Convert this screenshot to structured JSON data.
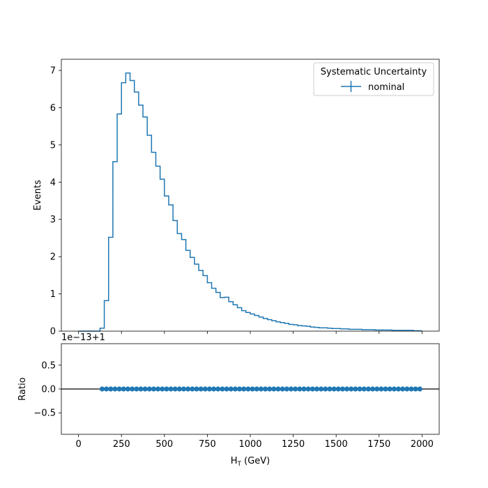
{
  "chart_data": [
    {
      "type": "line",
      "panel": "main",
      "ylabel": "Events",
      "ylim": [
        0,
        7.3
      ],
      "xlim": [
        -100,
        2100
      ],
      "yticks": [
        0,
        1,
        2,
        3,
        4,
        5,
        6,
        7
      ],
      "legend": {
        "title": "Systematic Uncertainty",
        "location": "upper right",
        "entries": [
          "nominal"
        ]
      },
      "series": [
        {
          "name": "nominal",
          "color": "#1f77b4",
          "bin_edges": [
            0,
            25,
            50,
            75,
            100,
            125,
            150,
            175,
            200,
            225,
            250,
            275,
            300,
            325,
            350,
            375,
            400,
            425,
            450,
            475,
            500,
            525,
            550,
            575,
            600,
            625,
            650,
            675,
            700,
            725,
            750,
            775,
            800,
            825,
            850,
            875,
            900,
            925,
            950,
            975,
            1000,
            1025,
            1050,
            1075,
            1100,
            1125,
            1150,
            1175,
            1200,
            1225,
            1250,
            1275,
            1300,
            1325,
            1350,
            1375,
            1400,
            1425,
            1450,
            1475,
            1500,
            1525,
            1550,
            1575,
            1600,
            1625,
            1650,
            1675,
            1700,
            1725,
            1750,
            1775,
            1800,
            1825,
            1850,
            1875,
            1900,
            1925,
            1950,
            1975,
            2000
          ],
          "values": [
            0,
            0,
            0,
            0,
            0,
            0.08,
            0.82,
            2.52,
            4.55,
            5.83,
            6.67,
            6.93,
            6.73,
            6.42,
            6.07,
            5.75,
            5.26,
            4.8,
            4.43,
            4.08,
            3.63,
            3.39,
            2.97,
            2.62,
            2.46,
            2.17,
            1.98,
            1.8,
            1.63,
            1.49,
            1.3,
            1.15,
            1.04,
            0.9,
            0.91,
            0.79,
            0.71,
            0.63,
            0.55,
            0.5,
            0.46,
            0.42,
            0.38,
            0.34,
            0.31,
            0.28,
            0.25,
            0.23,
            0.21,
            0.18,
            0.17,
            0.15,
            0.14,
            0.13,
            0.11,
            0.1,
            0.09,
            0.09,
            0.08,
            0.07,
            0.07,
            0.06,
            0.06,
            0.05,
            0.05,
            0.05,
            0.04,
            0.04,
            0.04,
            0.03,
            0.03,
            0.03,
            0.03,
            0.02,
            0.02,
            0.02,
            0.02,
            0.02,
            0.01,
            0.01
          ]
        }
      ]
    },
    {
      "type": "scatter",
      "panel": "ratio",
      "ylabel": "Ratio",
      "xlabel": "H_T (GeV)",
      "offset_label": "1e−13+1",
      "ylim": [
        -0.95,
        0.95
      ],
      "xlim": [
        -100,
        2100
      ],
      "yticks": [
        -0.5,
        0.0,
        0.5
      ],
      "xticks": [
        0,
        250,
        500,
        750,
        1000,
        1250,
        1500,
        1750,
        2000
      ],
      "reference_line": 0.0,
      "series": [
        {
          "name": "nominal",
          "color": "#1f77b4",
          "x_first": 137.5,
          "x_last": 1987.5,
          "x_step": 25,
          "y": 0.0
        }
      ]
    }
  ],
  "text": {
    "ylabel_main": "Events",
    "ylabel_ratio": "Ratio",
    "xlabel_main": "H",
    "xlabel_sub": "T",
    "xlabel_unit": " (GeV)",
    "offset": "1e−13+1",
    "legend_title": "Systematic Uncertainty",
    "legend_entry": "nominal",
    "yticks_main": [
      "0",
      "1",
      "2",
      "3",
      "4",
      "5",
      "6",
      "7"
    ],
    "yticks_ratio": [
      "−0.5",
      "0.0",
      "0.5"
    ],
    "xticks": [
      "0",
      "250",
      "500",
      "750",
      "1000",
      "1250",
      "1500",
      "1750",
      "2000"
    ]
  }
}
